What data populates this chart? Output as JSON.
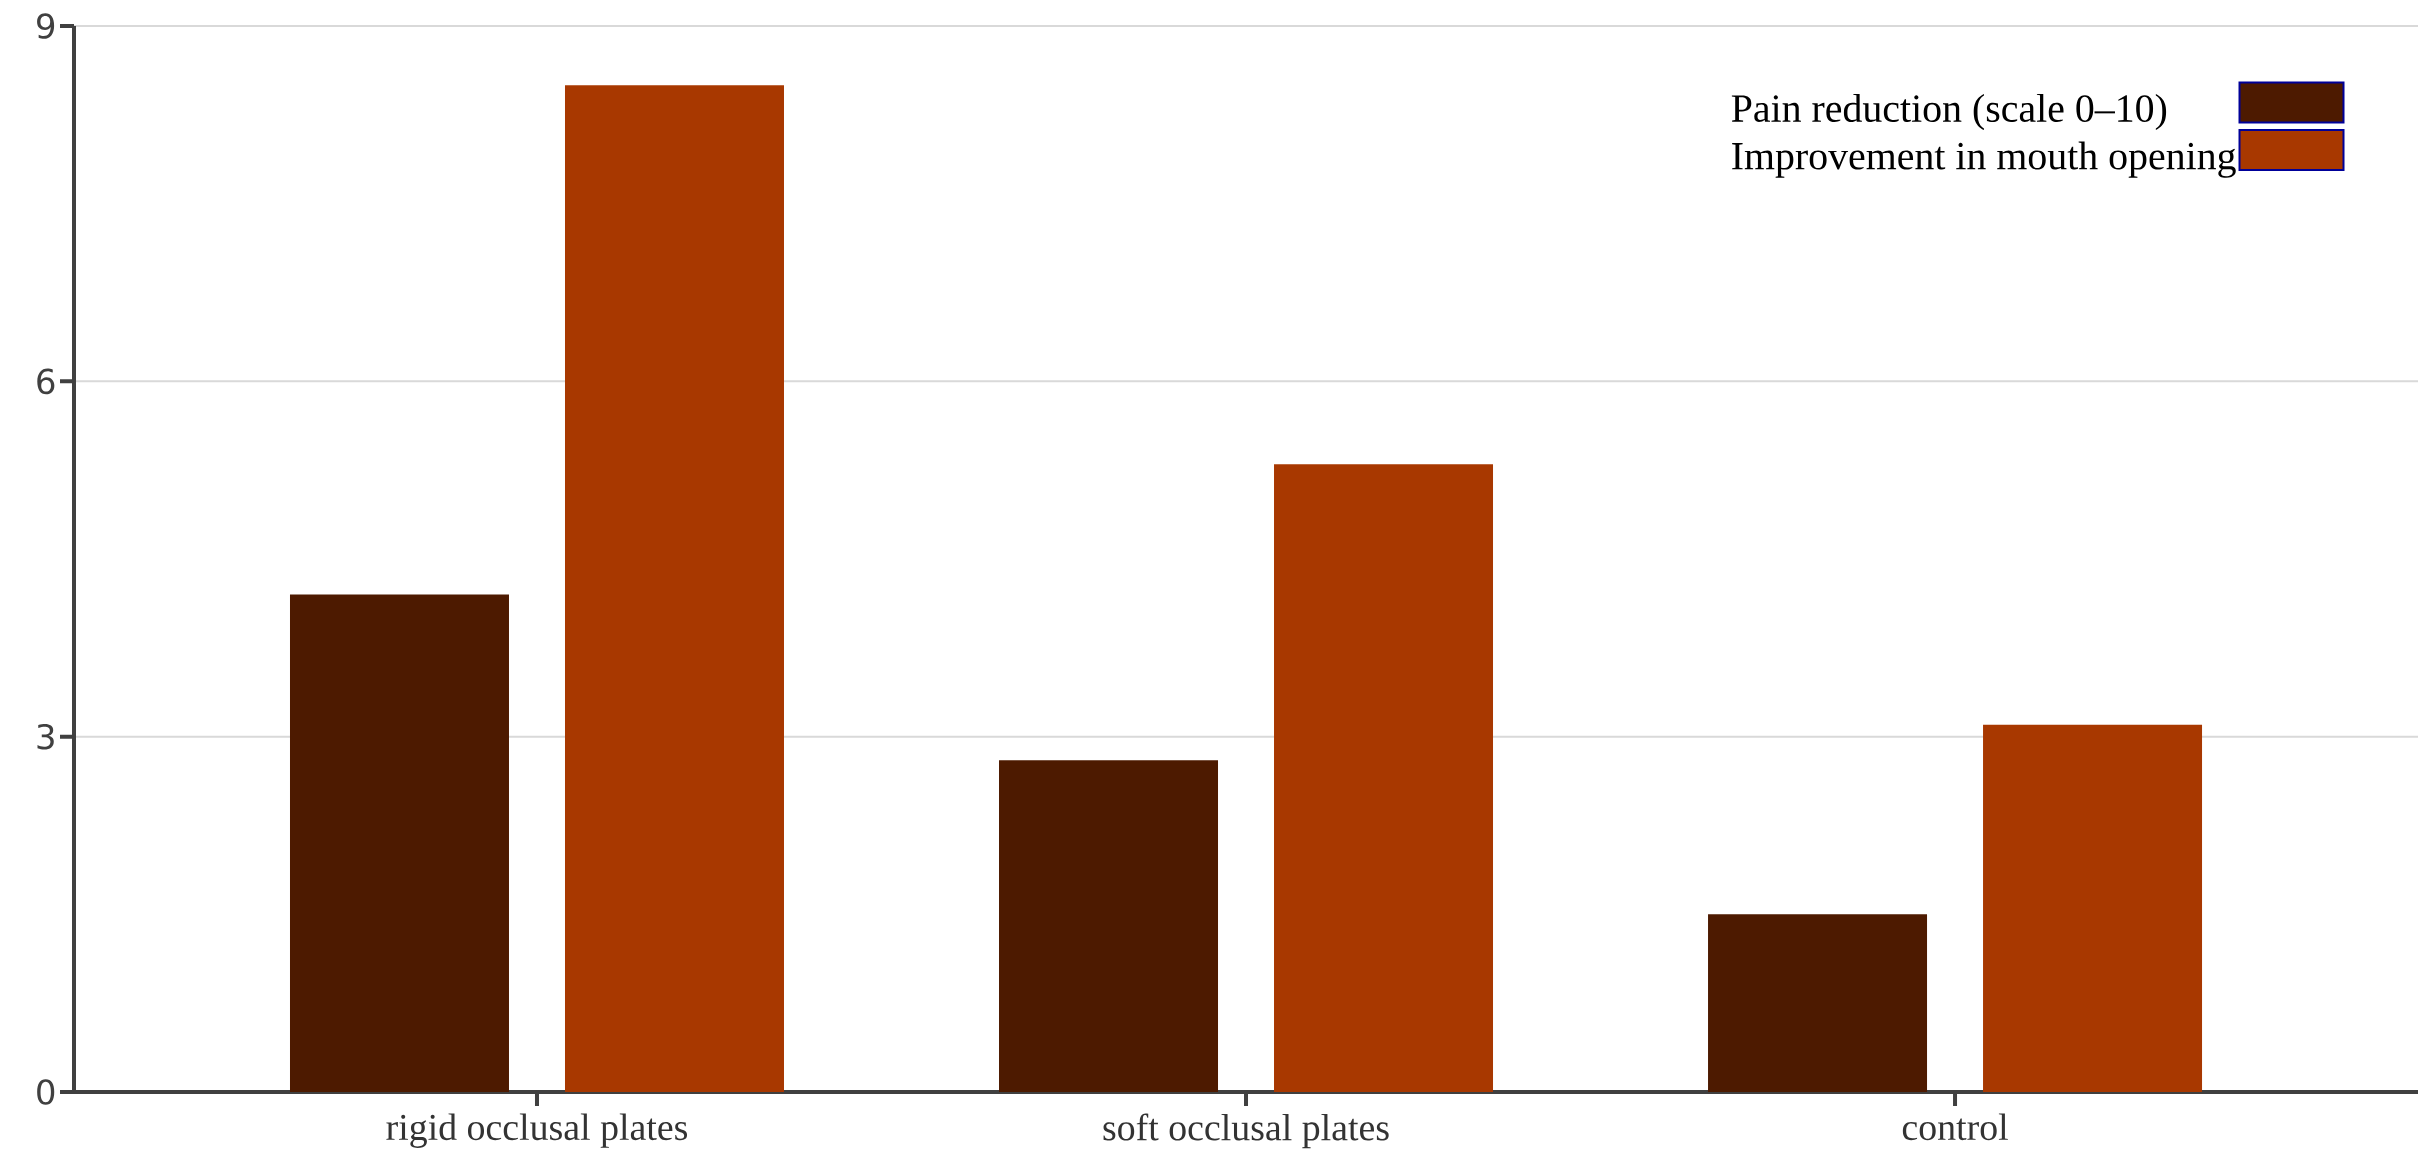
{
  "chart_data": {
    "type": "bar",
    "categories": [
      "rigid occlusal plates",
      "soft occlusal plates",
      "control"
    ],
    "series": [
      {
        "name": "Pain reduction (scale 0–10)",
        "color": "#4d1a00",
        "values": [
          4.2,
          2.8,
          1.5
        ]
      },
      {
        "name": "Improvement in mouth opening",
        "color": "#a83800",
        "values": [
          8.5,
          5.3,
          3.1
        ]
      }
    ],
    "ylim": [
      0,
      9
    ],
    "yticks": [
      0,
      3,
      6,
      9
    ],
    "grid": "y",
    "legend": "top right"
  }
}
